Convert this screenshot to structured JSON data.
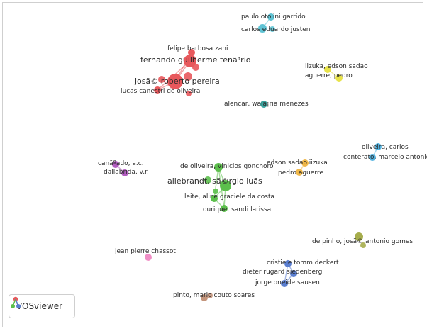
{
  "logo": {
    "text": "VOSviewer",
    "icon": "vosviewer-logo-icon"
  },
  "colors": {
    "red": "#e8585c",
    "cyan": "#5fc3d4",
    "yellow": "#e8e34a",
    "teal": "#3aa6a0",
    "orange": "#f0b84a",
    "lightblue": "#53b3e0",
    "purple": "#b25cc0",
    "green": "#5cbf4c",
    "pink": "#f08ec6",
    "olive": "#a6ad4c",
    "blue": "#5a7ed0",
    "brown": "#c4957c"
  },
  "nodes": [
    {
      "id": "otolini",
      "label": "paulo otolini garrido",
      "cluster": "cyan"
    },
    {
      "id": "justen",
      "label": "carlos eduardo justen",
      "cluster": "cyan"
    },
    {
      "id": "zani",
      "label": "felipe barbosa zani",
      "cluster": "red"
    },
    {
      "id": "tenorio",
      "label": "fernando guilherme tenã³rio",
      "cluster": "red"
    },
    {
      "id": "pereira",
      "label": "josã© roberto pereira",
      "cluster": "red"
    },
    {
      "id": "canestri",
      "label": "lucas canestri de oliveira",
      "cluster": "red"
    },
    {
      "id": "iizuka1",
      "label": "iizuka, edson sadao",
      "cluster": "yellow"
    },
    {
      "id": "aguerre1",
      "label": "aguerre, pedro",
      "cluster": "yellow"
    },
    {
      "id": "alencar",
      "label": "alencar, walã¡ria menezes",
      "cluster": "teal"
    },
    {
      "id": "oliveira_c",
      "label": "oliveira, carlos",
      "cluster": "lightblue"
    },
    {
      "id": "conterato",
      "label": "conterato, marcelo antonio",
      "cluster": "lightblue"
    },
    {
      "id": "iizuka2",
      "label": "edson sadao iizuka",
      "cluster": "orange"
    },
    {
      "id": "aguerre2",
      "label": "pedro aguerre",
      "cluster": "orange"
    },
    {
      "id": "canado",
      "label": "canãºado, a.c.",
      "cluster": "purple"
    },
    {
      "id": "dallabrida",
      "label": "dallabrida, v.r.",
      "cluster": "purple"
    },
    {
      "id": "gonchoro",
      "label": "de oliveira, vinicios gonchoro",
      "cluster": "green"
    },
    {
      "id": "allebrandt",
      "label": "allebrandt, sã©rgio luã­s",
      "cluster": "green"
    },
    {
      "id": "leite",
      "label": "leite, aline graciele da costa",
      "cluster": "green"
    },
    {
      "id": "ourique",
      "label": "ourique, sandi larissa",
      "cluster": "green"
    },
    {
      "id": "depinho",
      "label": "de pinho, josã© antonio gomes",
      "cluster": "olive"
    },
    {
      "id": "chassot",
      "label": "jean pierre chassot",
      "cluster": "pink"
    },
    {
      "id": "deckert",
      "label": "cristiele tomm deckert",
      "cluster": "blue"
    },
    {
      "id": "siedenberg",
      "label": "dieter rugard siedenberg",
      "cluster": "blue"
    },
    {
      "id": "sausen",
      "label": "jorge oneide sausen",
      "cluster": "blue"
    },
    {
      "id": "pinto",
      "label": "pinto, mario couto soares",
      "cluster": "brown"
    }
  ],
  "links": [
    [
      "otolini",
      "justen"
    ],
    [
      "zani",
      "tenorio"
    ],
    [
      "zani",
      "pereira"
    ],
    [
      "tenorio",
      "pereira"
    ],
    [
      "pereira",
      "canestri"
    ],
    [
      "tenorio",
      "canestri"
    ],
    [
      "iizuka1",
      "aguerre1"
    ],
    [
      "oliveira_c",
      "conterato"
    ],
    [
      "iizuka2",
      "aguerre2"
    ],
    [
      "canado",
      "dallabrida"
    ],
    [
      "gonchoro",
      "allebrandt"
    ],
    [
      "gonchoro",
      "leite"
    ],
    [
      "gonchoro",
      "ourique"
    ],
    [
      "allebrandt",
      "leite"
    ],
    [
      "allebrandt",
      "ourique"
    ],
    [
      "leite",
      "ourique"
    ],
    [
      "deckert",
      "siedenberg"
    ],
    [
      "deckert",
      "sausen"
    ],
    [
      "siedenberg",
      "sausen"
    ],
    [
      "pinto",
      "pinto"
    ]
  ]
}
